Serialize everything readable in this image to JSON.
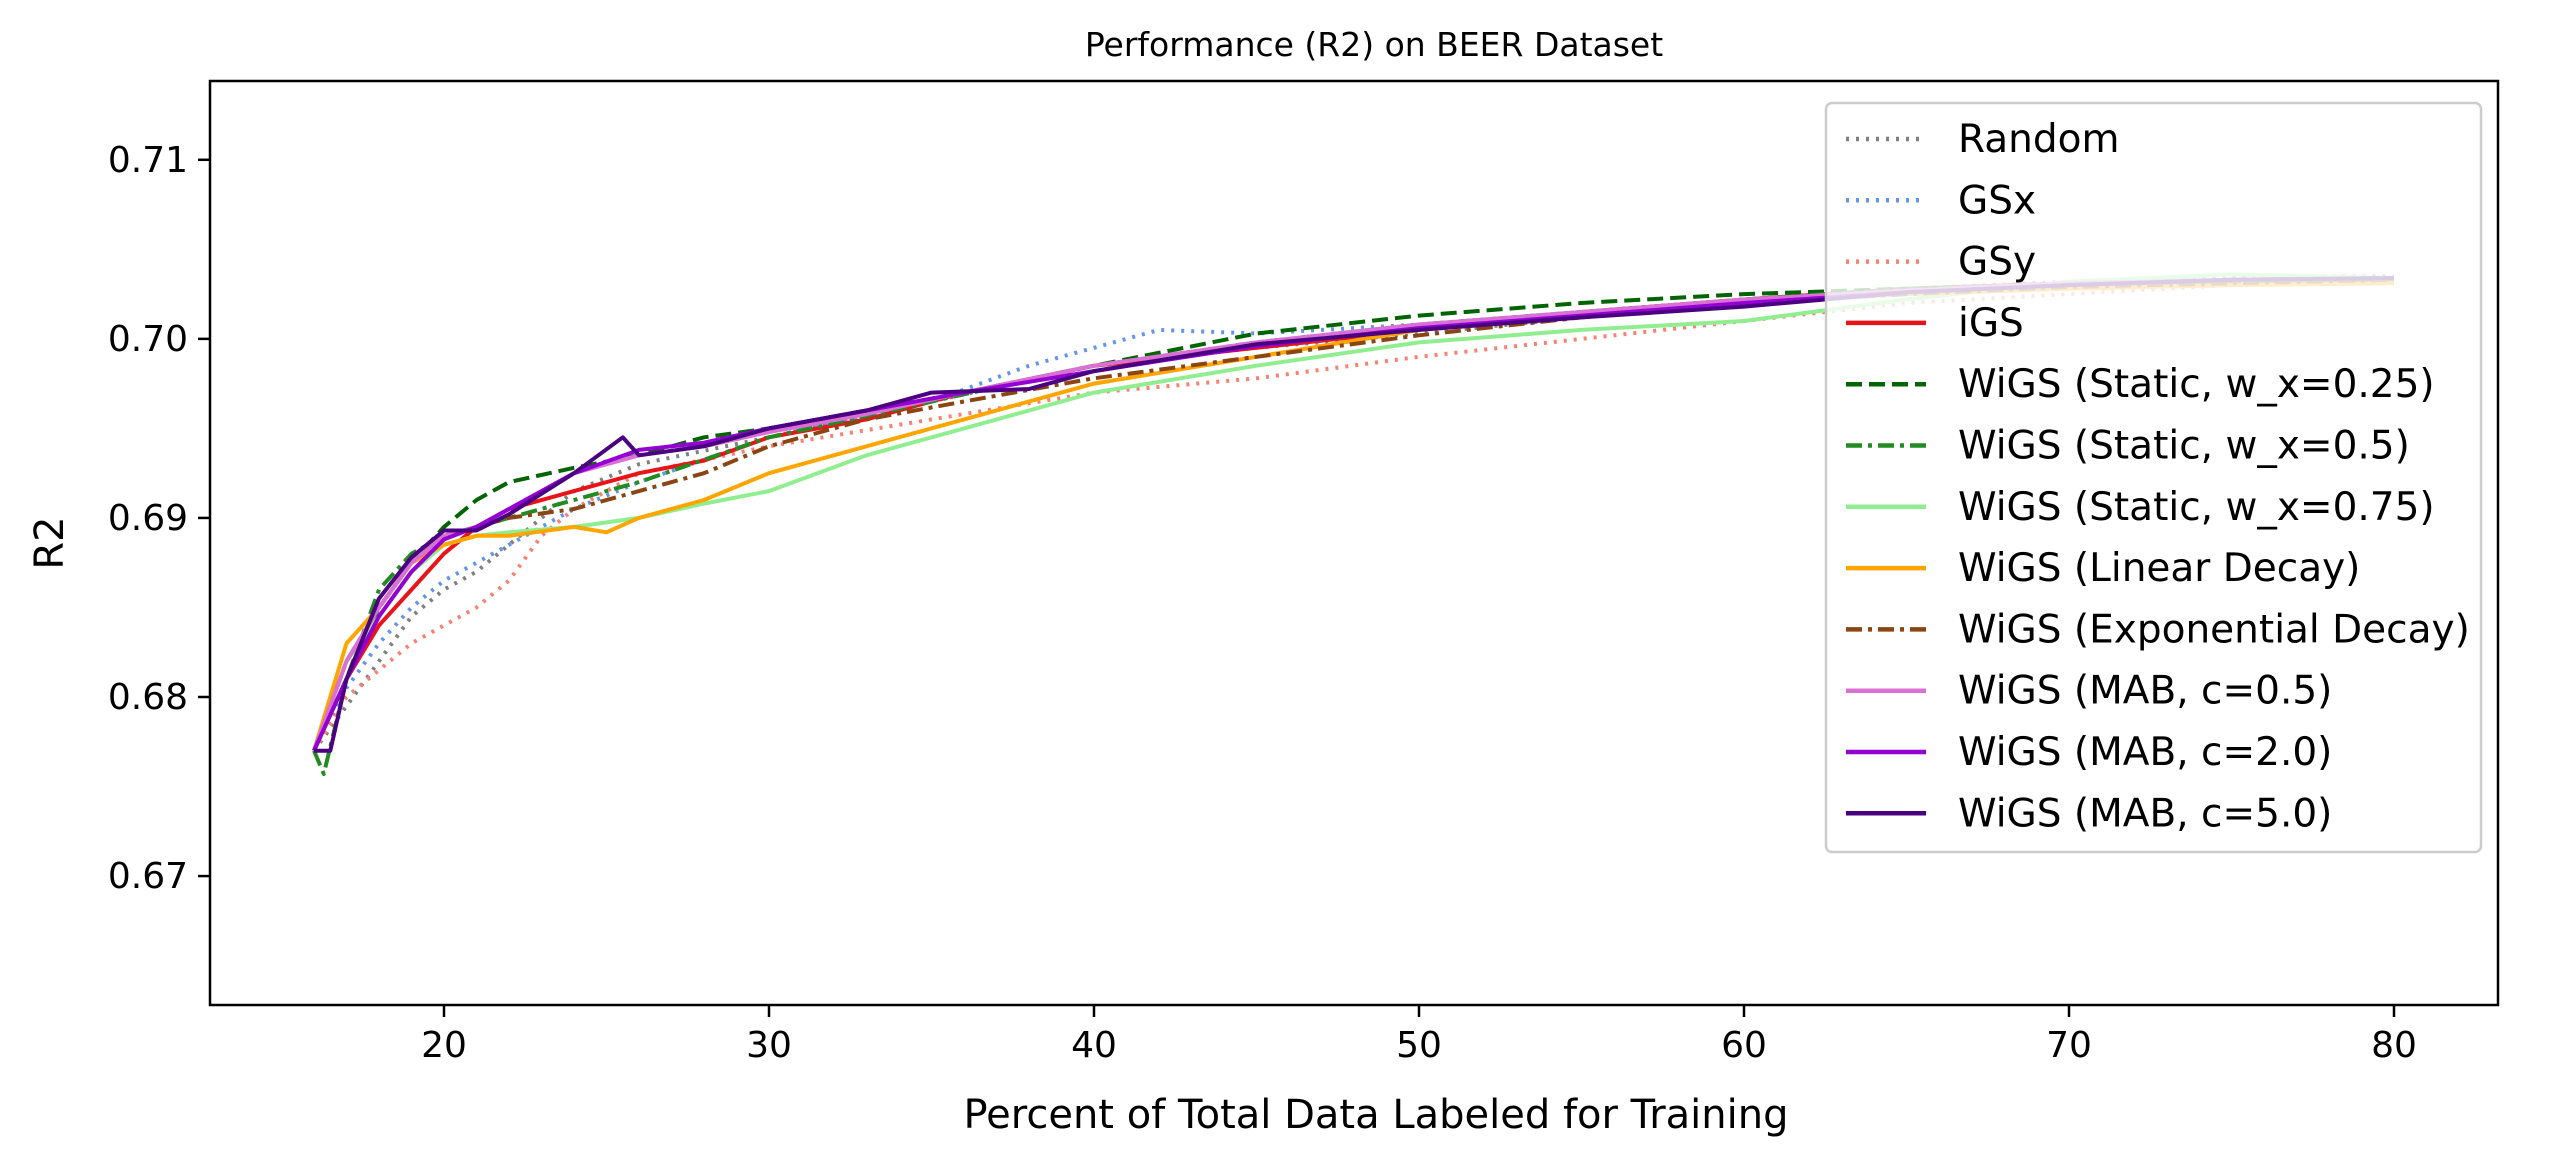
{
  "chart_data": {
    "type": "line",
    "title": "Performance (R2) on BEER Dataset",
    "xlabel": "Percent of Total Data Labeled for Training",
    "ylabel": "R2",
    "xlim": [
      12.8,
      83.2
    ],
    "ylim": [
      0.6628,
      0.7144
    ],
    "xticks": [
      20,
      30,
      40,
      50,
      60,
      70,
      80
    ],
    "yticks": [
      0.67,
      0.68,
      0.69,
      0.7,
      0.71
    ],
    "xtick_labels": [
      "20",
      "30",
      "40",
      "50",
      "60",
      "70",
      "80"
    ],
    "ytick_labels": [
      "0.67",
      "0.68",
      "0.69",
      "0.70",
      "0.71"
    ],
    "grid": false,
    "legend_position": "upper-right",
    "series": [
      {
        "name": "Random",
        "color": "#808080",
        "dash": "dotted",
        "x": [
          16,
          17,
          18,
          19,
          20,
          21,
          22,
          24,
          26,
          30,
          35,
          40,
          45,
          50,
          55,
          60,
          65,
          70,
          75,
          80
        ],
        "y": [
          0.677,
          0.6795,
          0.682,
          0.6845,
          0.686,
          0.687,
          0.6885,
          0.6915,
          0.693,
          0.6945,
          0.6965,
          0.6985,
          0.6995,
          0.7003,
          0.7012,
          0.702,
          0.7028,
          0.7032,
          0.7035,
          0.7035
        ]
      },
      {
        "name": "GSx",
        "color": "#6495ED",
        "dash": "dotted",
        "x": [
          16,
          17,
          18,
          19,
          20,
          21,
          22,
          24,
          26,
          30,
          35,
          38,
          40,
          42,
          45,
          50,
          55,
          60,
          65,
          70,
          75,
          80
        ],
        "y": [
          0.677,
          0.6805,
          0.683,
          0.685,
          0.6865,
          0.6875,
          0.6885,
          0.6905,
          0.692,
          0.6945,
          0.6965,
          0.6985,
          0.6995,
          0.7005,
          0.7003,
          0.7008,
          0.7015,
          0.7022,
          0.7028,
          0.7031,
          0.7033,
          0.7033
        ]
      },
      {
        "name": "GSy",
        "color": "#FA8072",
        "dash": "dotted",
        "x": [
          16,
          17,
          18,
          19,
          20,
          21,
          22,
          23,
          24,
          26,
          30,
          35,
          40,
          45,
          50,
          55,
          60,
          65,
          70,
          75,
          80
        ],
        "y": [
          0.677,
          0.68,
          0.6815,
          0.683,
          0.684,
          0.685,
          0.6865,
          0.689,
          0.6905,
          0.6925,
          0.694,
          0.6955,
          0.697,
          0.6978,
          0.699,
          0.7,
          0.701,
          0.702,
          0.7025,
          0.703,
          0.7032
        ]
      },
      {
        "name": "iGS",
        "color": "#E8141A",
        "dash": "solid",
        "x": [
          16,
          17,
          18,
          19,
          20,
          21,
          22,
          24,
          26,
          28,
          30,
          33,
          36,
          40,
          45,
          50,
          55,
          60,
          65,
          70,
          75,
          80
        ],
        "y": [
          0.677,
          0.681,
          0.684,
          0.686,
          0.688,
          0.6895,
          0.6905,
          0.6915,
          0.6925,
          0.6932,
          0.6945,
          0.6955,
          0.697,
          0.6985,
          0.6995,
          0.7005,
          0.7015,
          0.7022,
          0.7028,
          0.7031,
          0.7033,
          0.7034
        ]
      },
      {
        "name": "WiGS (Static, w_x=0.25)",
        "color": "#006400",
        "dash": "dashed",
        "x": [
          16,
          17,
          18,
          19,
          20,
          21,
          22,
          24,
          26,
          28,
          30,
          33,
          36,
          40,
          45,
          50,
          55,
          60,
          65,
          70,
          75,
          80
        ],
        "y": [
          0.677,
          0.681,
          0.685,
          0.6875,
          0.6895,
          0.691,
          0.692,
          0.6928,
          0.6935,
          0.6945,
          0.695,
          0.696,
          0.697,
          0.6985,
          0.7003,
          0.7013,
          0.702,
          0.7025,
          0.7028,
          0.703,
          0.7032,
          0.7033
        ]
      },
      {
        "name": "WiGS (Static, w_x=0.5)",
        "color": "#228B22",
        "dash": "dashdot",
        "x": [
          16,
          16.3,
          17,
          18,
          19,
          20,
          21,
          22,
          24,
          26,
          30,
          35,
          40,
          45,
          50,
          55,
          60,
          65,
          70,
          75,
          80
        ],
        "y": [
          0.677,
          0.6757,
          0.681,
          0.686,
          0.688,
          0.689,
          0.6895,
          0.69,
          0.691,
          0.692,
          0.6945,
          0.6965,
          0.6985,
          0.6998,
          0.7008,
          0.7015,
          0.7022,
          0.7028,
          0.7031,
          0.7032,
          0.7033
        ]
      },
      {
        "name": "WiGS (Static, w_x=0.75)",
        "color": "#90EE90",
        "dash": "solid",
        "x": [
          16,
          17,
          18,
          19,
          20,
          21,
          22,
          24,
          26,
          28,
          30,
          33,
          36,
          40,
          45,
          50,
          55,
          60,
          65,
          70,
          75,
          80
        ],
        "y": [
          0.677,
          0.682,
          0.6845,
          0.687,
          0.6885,
          0.689,
          0.6892,
          0.6895,
          0.69,
          0.6908,
          0.6915,
          0.6935,
          0.695,
          0.697,
          0.6985,
          0.6998,
          0.7005,
          0.701,
          0.7022,
          0.7032,
          0.7036,
          0.7034
        ]
      },
      {
        "name": "WiGS (Linear Decay)",
        "color": "#FFA500",
        "dash": "solid",
        "x": [
          16,
          17,
          18,
          19,
          20,
          21,
          22,
          24,
          25,
          26,
          28,
          30,
          33,
          36,
          40,
          45,
          50,
          55,
          60,
          65,
          70,
          75,
          80
        ],
        "y": [
          0.677,
          0.683,
          0.685,
          0.6875,
          0.6885,
          0.689,
          0.689,
          0.6895,
          0.6892,
          0.69,
          0.691,
          0.6925,
          0.694,
          0.6955,
          0.6975,
          0.699,
          0.7005,
          0.7012,
          0.702,
          0.7025,
          0.7028,
          0.703,
          0.7031
        ]
      },
      {
        "name": "WiGS (Exponential Decay)",
        "color": "#8B4513",
        "dash": "dashdot",
        "x": [
          16,
          17,
          18,
          19,
          20,
          21,
          22,
          24,
          26,
          28,
          30,
          33,
          36,
          40,
          45,
          50,
          55,
          60,
          65,
          70,
          75,
          80
        ],
        "y": [
          0.677,
          0.682,
          0.685,
          0.6875,
          0.689,
          0.6895,
          0.69,
          0.6905,
          0.6915,
          0.6925,
          0.694,
          0.6955,
          0.6965,
          0.6978,
          0.699,
          0.7002,
          0.7012,
          0.702,
          0.7025,
          0.7029,
          0.7031,
          0.7033
        ]
      },
      {
        "name": "WiGS (MAB, c=0.5)",
        "color": "#DA70D6",
        "dash": "solid",
        "x": [
          16,
          17,
          18,
          19,
          20,
          21,
          22,
          24,
          26,
          28,
          30,
          33,
          36,
          40,
          45,
          50,
          55,
          60,
          65,
          70,
          75,
          80
        ],
        "y": [
          0.677,
          0.682,
          0.685,
          0.6875,
          0.689,
          0.6895,
          0.6905,
          0.6925,
          0.6935,
          0.694,
          0.6948,
          0.6958,
          0.697,
          0.6985,
          0.6998,
          0.7008,
          0.7015,
          0.7022,
          0.7027,
          0.7031,
          0.7033,
          0.7034
        ]
      },
      {
        "name": "WiGS (MAB, c=2.0)",
        "color": "#9400D3",
        "dash": "solid",
        "x": [
          16,
          17,
          18,
          19,
          20,
          21,
          22,
          24,
          26,
          28,
          30,
          33,
          36,
          40,
          45,
          50,
          55,
          60,
          65,
          70,
          75,
          80
        ],
        "y": [
          0.677,
          0.681,
          0.6845,
          0.687,
          0.6888,
          0.6895,
          0.6905,
          0.6925,
          0.6938,
          0.6942,
          0.695,
          0.696,
          0.697,
          0.6982,
          0.6996,
          0.7006,
          0.7013,
          0.702,
          0.7026,
          0.703,
          0.7033,
          0.7034
        ]
      },
      {
        "name": "WiGS (MAB, c=5.0)",
        "color": "#4B0082",
        "dash": "solid",
        "x": [
          16,
          16.5,
          17,
          18,
          19,
          20,
          21,
          22,
          24,
          25.5,
          26,
          28,
          30,
          33,
          35,
          38,
          40,
          45,
          50,
          55,
          60,
          65,
          70,
          75,
          80
        ],
        "y": [
          0.677,
          0.677,
          0.681,
          0.6855,
          0.6878,
          0.6893,
          0.6893,
          0.6902,
          0.6925,
          0.6945,
          0.6935,
          0.694,
          0.695,
          0.696,
          0.697,
          0.6972,
          0.6982,
          0.6997,
          0.7005,
          0.7012,
          0.7018,
          0.7026,
          0.703,
          0.7033,
          0.7034
        ]
      }
    ]
  }
}
